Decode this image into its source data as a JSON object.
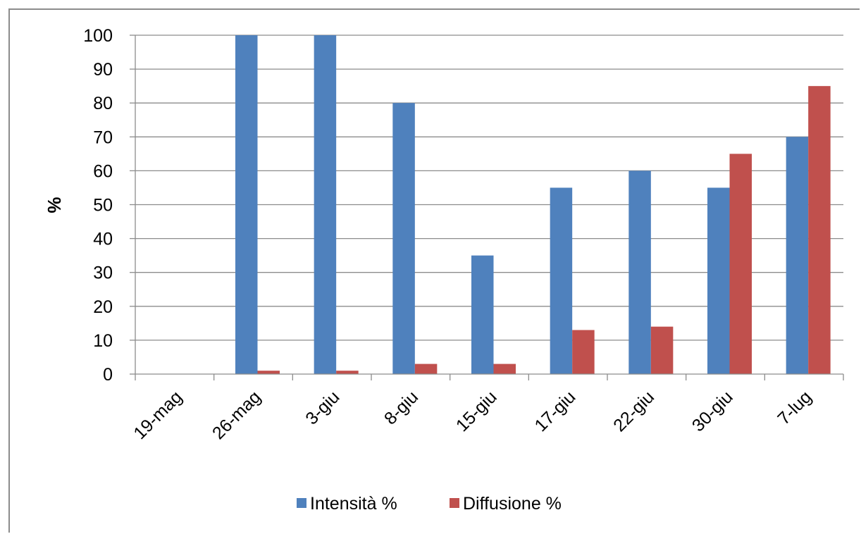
{
  "chart_data": {
    "type": "bar",
    "ylabel": "%",
    "xlabel": "",
    "ylim": [
      0,
      100
    ],
    "yticks": [
      0,
      10,
      20,
      30,
      40,
      50,
      60,
      70,
      80,
      90,
      100
    ],
    "categories": [
      "19-mag",
      "26-mag",
      "3-giu",
      "8-giu",
      "15-giu",
      "17-giu",
      "22-giu",
      "30-giu",
      "7-lug"
    ],
    "series": [
      {
        "name": "Intensità %",
        "color": "#4f81bd",
        "values": [
          0,
          100,
          100,
          80,
          35,
          55,
          60,
          55,
          70
        ]
      },
      {
        "name": "Diffusione %",
        "color": "#c0504d",
        "values": [
          0,
          1,
          1,
          3,
          3,
          13,
          14,
          65,
          85
        ]
      }
    ],
    "grid": true,
    "legend_position": "bottom"
  }
}
